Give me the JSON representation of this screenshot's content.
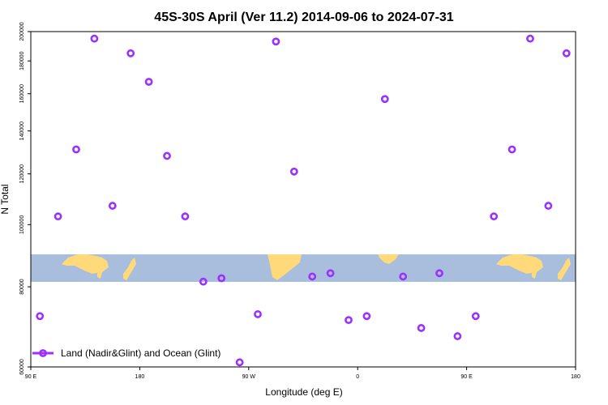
{
  "chart_data": {
    "type": "scatter",
    "title": "45S-30S April (Ver 11.2)   2014-09-06 to 2024-07-31",
    "xlabel": "Longitude (deg E)",
    "ylabel": "N Total",
    "x_axis": {
      "range": [
        90,
        540
      ],
      "ticks": [
        {
          "value": 90,
          "label": "90 E"
        },
        {
          "value": 180,
          "label": "180"
        },
        {
          "value": 270,
          "label": "90 W"
        },
        {
          "value": 360,
          "label": "0"
        },
        {
          "value": 450,
          "label": "90 E"
        },
        {
          "value": 540,
          "label": "180"
        }
      ]
    },
    "y_axis": {
      "scale": "log",
      "range": [
        60000,
        200000
      ],
      "ticks": [
        60000,
        80000,
        100000,
        120000,
        140000,
        160000,
        180000,
        200000
      ]
    },
    "grid": false,
    "legend": {
      "placement": "bottom-left",
      "entries": [
        "Land (Nadir&Glint) and Ocean (Glint)"
      ]
    },
    "series": [
      {
        "name": "Land (Nadir&Glint) and Ocean (Glint)",
        "color": "#9b30ff",
        "x": [
          97.5,
          112.5,
          127.5,
          142.5,
          157.5,
          172.5,
          187.5,
          202.5,
          217.5,
          232.5,
          247.5,
          262.5,
          277.5,
          292.5,
          307.5,
          322.5,
          337.5,
          352.5,
          367.5,
          382.5,
          397.5,
          412.5,
          427.5,
          442.5,
          457.5,
          472.5,
          487.5,
          502.5,
          517.5,
          532.5
        ],
        "y": [
          72000,
          103000,
          131000,
          195000,
          107000,
          185000,
          167000,
          128000,
          103000,
          81500,
          82500,
          61000,
          72500,
          193000,
          121000,
          83000,
          84000,
          71000,
          72000,
          157000,
          83000,
          69000,
          84000,
          67000,
          72000,
          103000,
          131000,
          195000,
          107000,
          185000
        ]
      }
    ]
  },
  "map_colors": {
    "ocean": "#a8bedc",
    "land": "#ffd97a"
  }
}
